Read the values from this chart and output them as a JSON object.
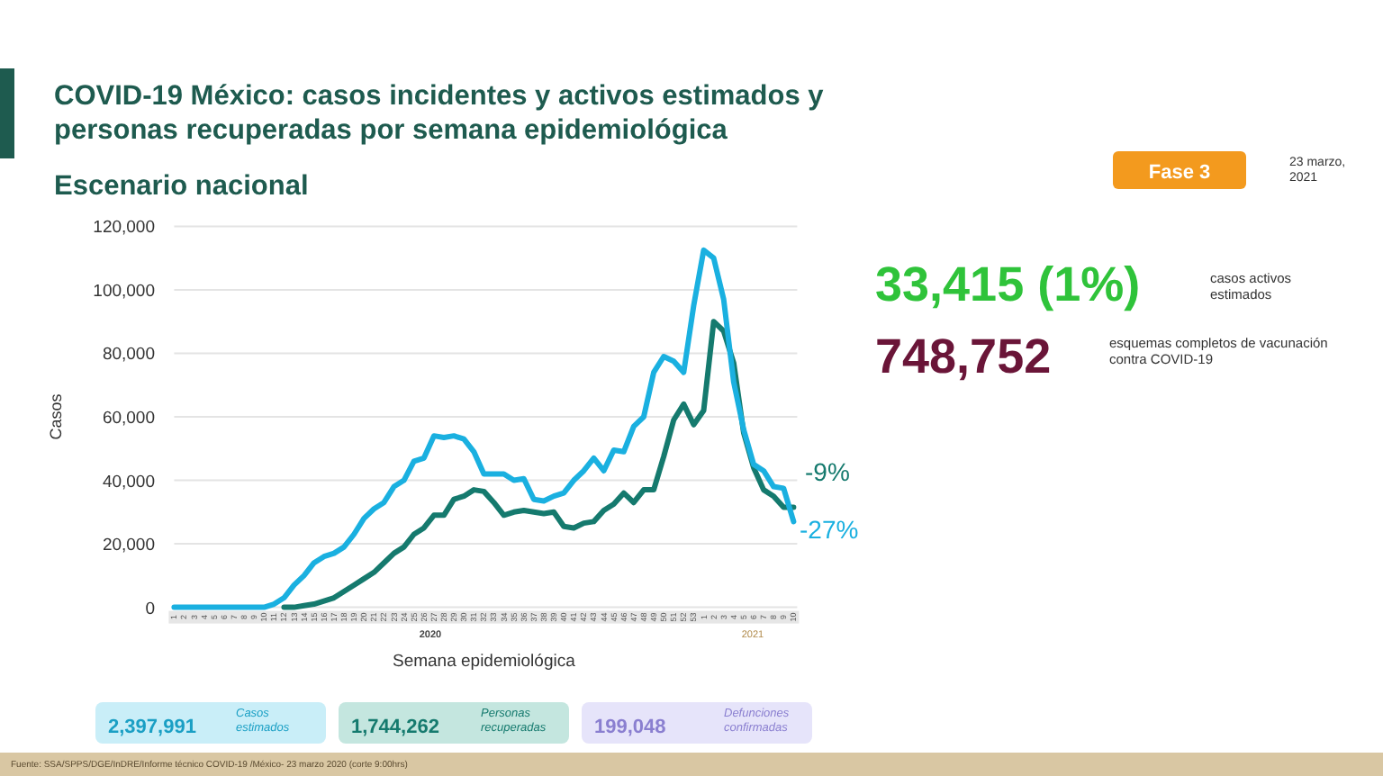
{
  "chart_data": {
    "type": "line",
    "title": "COVID-19 México: casos incidentes y activos estimados y personas recuperadas por semana epidemiológica",
    "subtitle": "Escenario nacional",
    "xlabel": "Semana epidemiológica",
    "ylabel": "Casos",
    "categories": [
      "1",
      "2",
      "3",
      "4",
      "5",
      "6",
      "7",
      "8",
      "9",
      "10",
      "11",
      "12",
      "13",
      "14",
      "15",
      "16",
      "17",
      "18",
      "19",
      "20",
      "21",
      "22",
      "23",
      "24",
      "25",
      "26",
      "27",
      "28",
      "29",
      "30",
      "31",
      "32",
      "33",
      "34",
      "35",
      "36",
      "37",
      "38",
      "39",
      "40",
      "41",
      "42",
      "43",
      "44",
      "45",
      "46",
      "47",
      "48",
      "49",
      "50",
      "51",
      "52",
      "53",
      "1",
      "2",
      "3",
      "4",
      "5",
      "6",
      "7",
      "8",
      "9",
      "10"
    ],
    "series": [
      {
        "color": "#157a6e",
        "values": [
          null,
          null,
          null,
          null,
          null,
          null,
          null,
          null,
          null,
          null,
          null,
          0,
          0,
          500,
          1000,
          2000,
          3000,
          5000,
          7000,
          9000,
          11000,
          14000,
          17000,
          19000,
          23000,
          25000,
          29000,
          29000,
          34000,
          35000,
          37000,
          36500,
          33000,
          29000,
          30000,
          30500,
          30000,
          29500,
          30000,
          25500,
          25000,
          26500,
          27000,
          30500,
          32500,
          36000,
          33000,
          37000,
          37000,
          47500,
          59000,
          64000,
          57500,
          62000,
          90000,
          87000,
          77000,
          55000,
          44000,
          37000,
          35000,
          31500,
          31500
        ]
      },
      {
        "color": "#1ab0e0",
        "values": [
          0,
          0,
          0,
          0,
          0,
          0,
          0,
          0,
          0,
          0,
          1000,
          3000,
          7000,
          10000,
          14000,
          16000,
          17000,
          19000,
          23000,
          28000,
          31000,
          33000,
          38000,
          40000,
          46000,
          47000,
          54000,
          53500,
          54000,
          53000,
          49000,
          42000,
          42000,
          42000,
          40000,
          40500,
          34000,
          33500,
          35000,
          36000,
          40000,
          43000,
          47000,
          43000,
          49500,
          49000,
          57000,
          60000,
          74000,
          79000,
          77500,
          74000,
          95000,
          112500,
          110000,
          97000,
          71000,
          56000,
          45000,
          43000,
          38000,
          37500,
          27000
        ]
      }
    ],
    "ylim": [
      0,
      120000
    ],
    "yticks": [
      0,
      {
        "value": 20000,
        "label": "20,000"
      },
      {
        "value": 40000,
        "label": "40,000"
      },
      {
        "value": 60000,
        "label": "60,000"
      },
      {
        "value": 80000,
        "label": "80,000"
      },
      {
        "value": 100000,
        "label": "100,000"
      },
      {
        "value": 120000,
        "label": "120,000"
      }
    ],
    "grid": "y",
    "line_style": "solid",
    "marker": "none",
    "annotations": [
      "2020",
      "2021",
      "-9%",
      "-27%",
      "33,415 (1%)",
      "casos activos estimados",
      "748,752",
      "esquemas completos de vacunación contra COVID-19",
      "Fase 3",
      "23 marzo, 2021",
      "2,397,991",
      "Casos estimados",
      "1,744,262",
      "Personas recuperadas",
      "199,048",
      "Defunciones confirmadas",
      "Fuente: SSA/SPPS/DGE/InDRE/Informe técnico COVID-19 /México- 23 marzo 2020 (corte 9:00hrs)"
    ]
  }
}
